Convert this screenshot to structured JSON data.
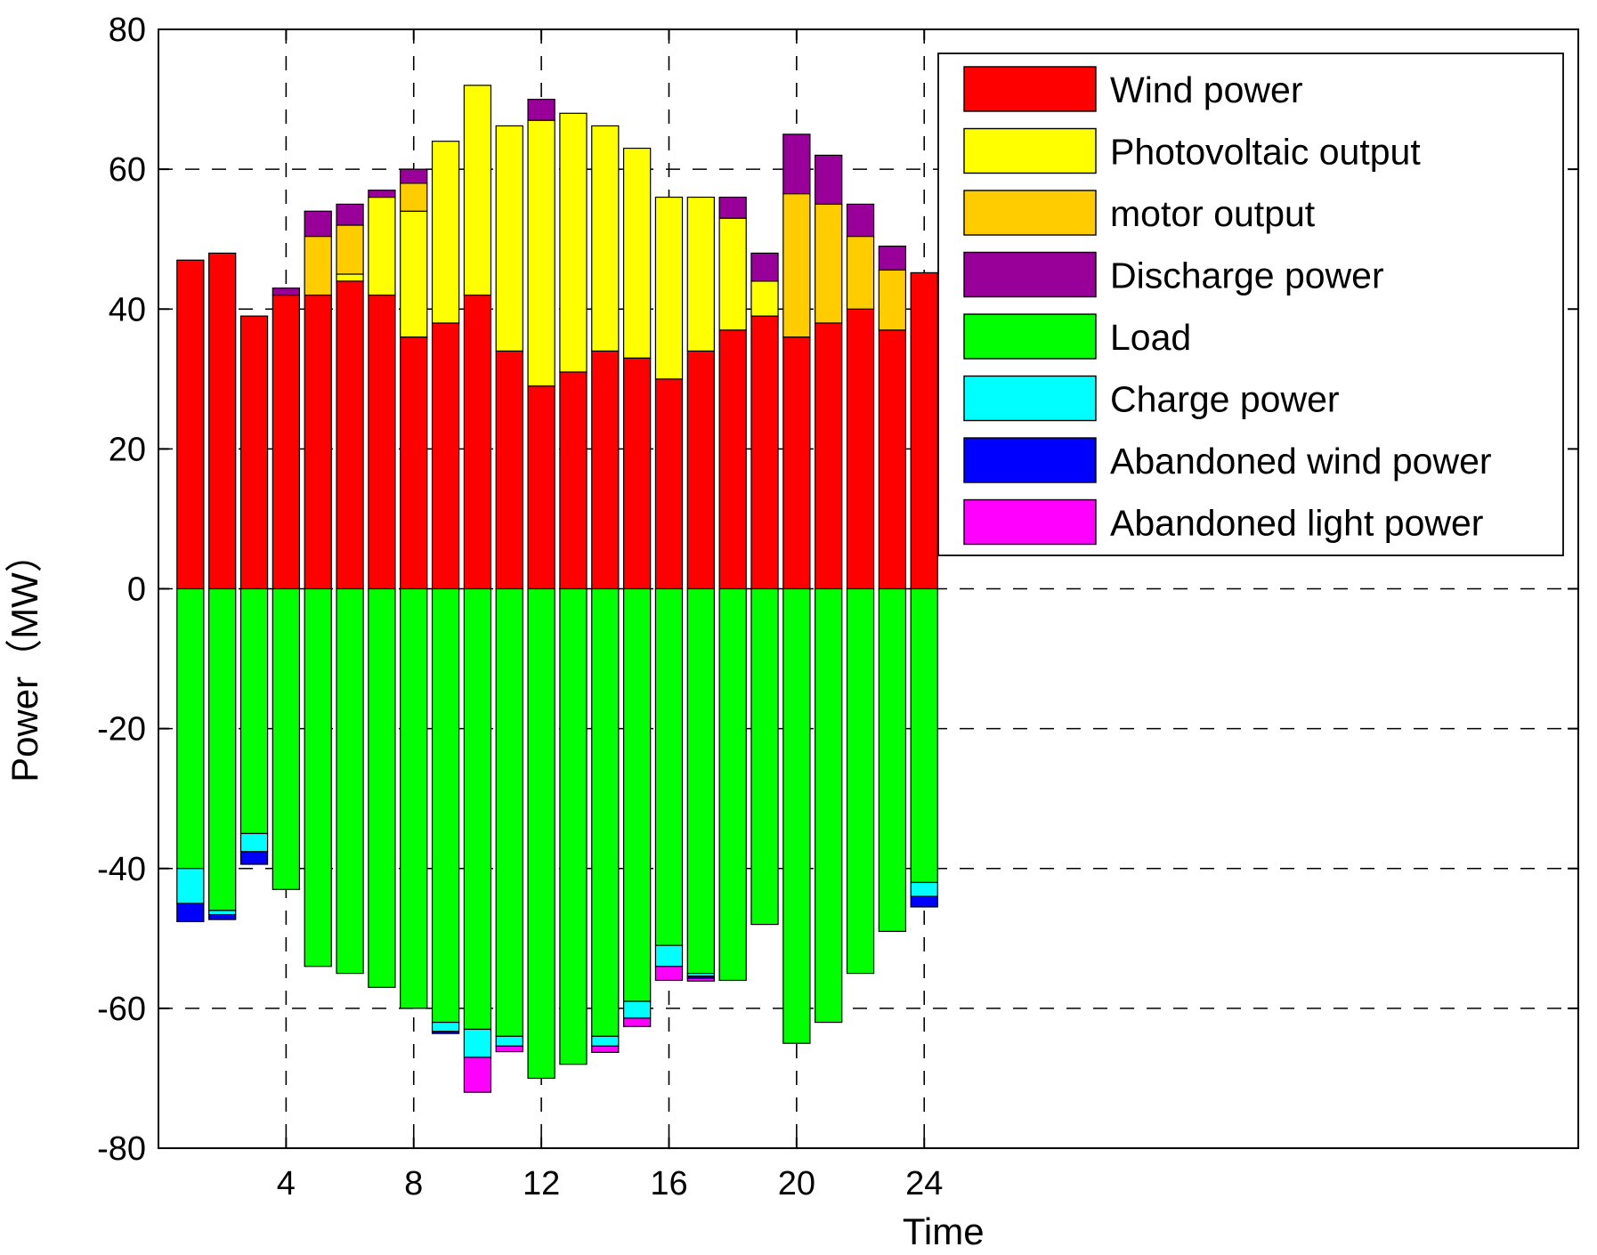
{
  "chart_data": {
    "type": "bar",
    "stacked": true,
    "diverging": true,
    "xlabel": "Time",
    "ylabel": "Power（MW）",
    "xlim": [
      0,
      44.5
    ],
    "ylim": [
      -80,
      80
    ],
    "xticks": [
      4,
      8,
      12,
      16,
      20,
      24
    ],
    "yticks": [
      -80,
      -60,
      -40,
      -20,
      0,
      20,
      40,
      60,
      80
    ],
    "grid": "dashed",
    "legend_position": "top-right",
    "x": [
      1,
      2,
      3,
      4,
      5,
      6,
      7,
      8,
      9,
      10,
      11,
      12,
      13,
      14,
      15,
      16,
      17,
      18,
      19,
      20,
      21,
      22,
      23,
      24
    ],
    "series": [
      {
        "name": "Wind power",
        "color": "#ff0000",
        "values": [
          47,
          48,
          39,
          42,
          42,
          44,
          42,
          36,
          38,
          42,
          34,
          29,
          31,
          34,
          33,
          30,
          34,
          37,
          39,
          36,
          38,
          40,
          37,
          45.2
        ]
      },
      {
        "name": "Photovoltaic output",
        "color": "#ffff00",
        "values": [
          0,
          0,
          0,
          0,
          0,
          1,
          14,
          18,
          26,
          30,
          32.2,
          38,
          37,
          32.2,
          30,
          26,
          22,
          16,
          5,
          0,
          0,
          0,
          0,
          0
        ]
      },
      {
        "name": "motor output",
        "color": "#ffcc00",
        "values": [
          0,
          0,
          0,
          0,
          8.4,
          7,
          0,
          4,
          0,
          0,
          0,
          0,
          0,
          0,
          0,
          0,
          0,
          0,
          0,
          20.5,
          17,
          10.4,
          8.6,
          0
        ]
      },
      {
        "name": "Discharge power",
        "color": "#990099",
        "values": [
          0,
          0,
          0,
          1,
          3.6,
          3,
          1,
          2,
          0,
          0,
          0,
          3,
          0,
          0,
          0,
          0,
          0,
          3,
          4,
          8.5,
          7,
          4.6,
          3.4,
          0
        ]
      },
      {
        "name": "Load",
        "color": "#00ff00",
        "values": [
          -40,
          -46,
          -35,
          -43,
          -54,
          -55,
          -57,
          -60,
          -62,
          -63,
          -64,
          -70,
          -68,
          -64,
          -59,
          -51,
          -55,
          -56,
          -48,
          -65,
          -62,
          -55,
          -49,
          -42
        ]
      },
      {
        "name": "Charge power",
        "color": "#00ffff",
        "values": [
          -5,
          -0.6,
          -2.6,
          0,
          0,
          0,
          0,
          0,
          -1.3,
          -4,
          -1.4,
          0,
          0,
          -1.4,
          -2.4,
          -3,
          -0.4,
          0,
          0,
          0,
          0,
          0,
          0,
          -2
        ]
      },
      {
        "name": "Abandoned wind power",
        "color": "#0000ff",
        "values": [
          -2.6,
          -0.7,
          -1.8,
          0,
          0,
          0,
          0,
          0,
          -0.3,
          0,
          0,
          0,
          0,
          0,
          0,
          0,
          -0.3,
          0,
          0,
          0,
          0,
          0,
          0,
          -1.5
        ]
      },
      {
        "name": "Abandoned light power",
        "color": "#ff00ff",
        "values": [
          0,
          0,
          0,
          0,
          0,
          0,
          0,
          0,
          0,
          -5,
          -0.8,
          0,
          0,
          -0.9,
          -1.2,
          -2,
          -0.4,
          0,
          0,
          0,
          0,
          0,
          0,
          0
        ]
      }
    ]
  }
}
